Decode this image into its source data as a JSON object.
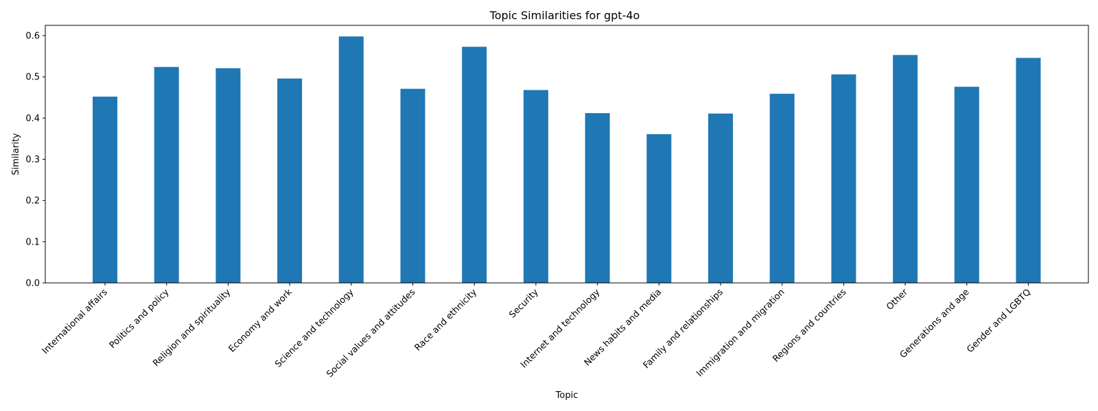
{
  "chart_data": {
    "type": "bar",
    "title": "Topic Similarities for gpt-4o",
    "xlabel": "Topic",
    "ylabel": "Similarity",
    "ylim": [
      0,
      0.625
    ],
    "yticks": [
      0.0,
      0.1,
      0.2,
      0.3,
      0.4,
      0.5,
      0.6
    ],
    "ytick_labels": [
      "0.0",
      "0.1",
      "0.2",
      "0.3",
      "0.4",
      "0.5",
      "0.6"
    ],
    "grid": false,
    "bar_color": "#1f77b4",
    "categories": [
      "International affairs",
      "Politics and policy",
      "Religion and spirituality",
      "Economy and work",
      "Science and technology",
      "Social values and attitudes",
      "Race and ethnicity",
      "Security",
      "Internet and technology",
      "News habits and media",
      "Family and relationships",
      "Immigration and migration",
      "Regions and countries",
      "Other",
      "Generations and age",
      "Gender and LGBTQ"
    ],
    "values": [
      0.452,
      0.524,
      0.521,
      0.496,
      0.598,
      0.471,
      0.573,
      0.468,
      0.412,
      0.361,
      0.411,
      0.459,
      0.506,
      0.553,
      0.476,
      0.546
    ]
  }
}
